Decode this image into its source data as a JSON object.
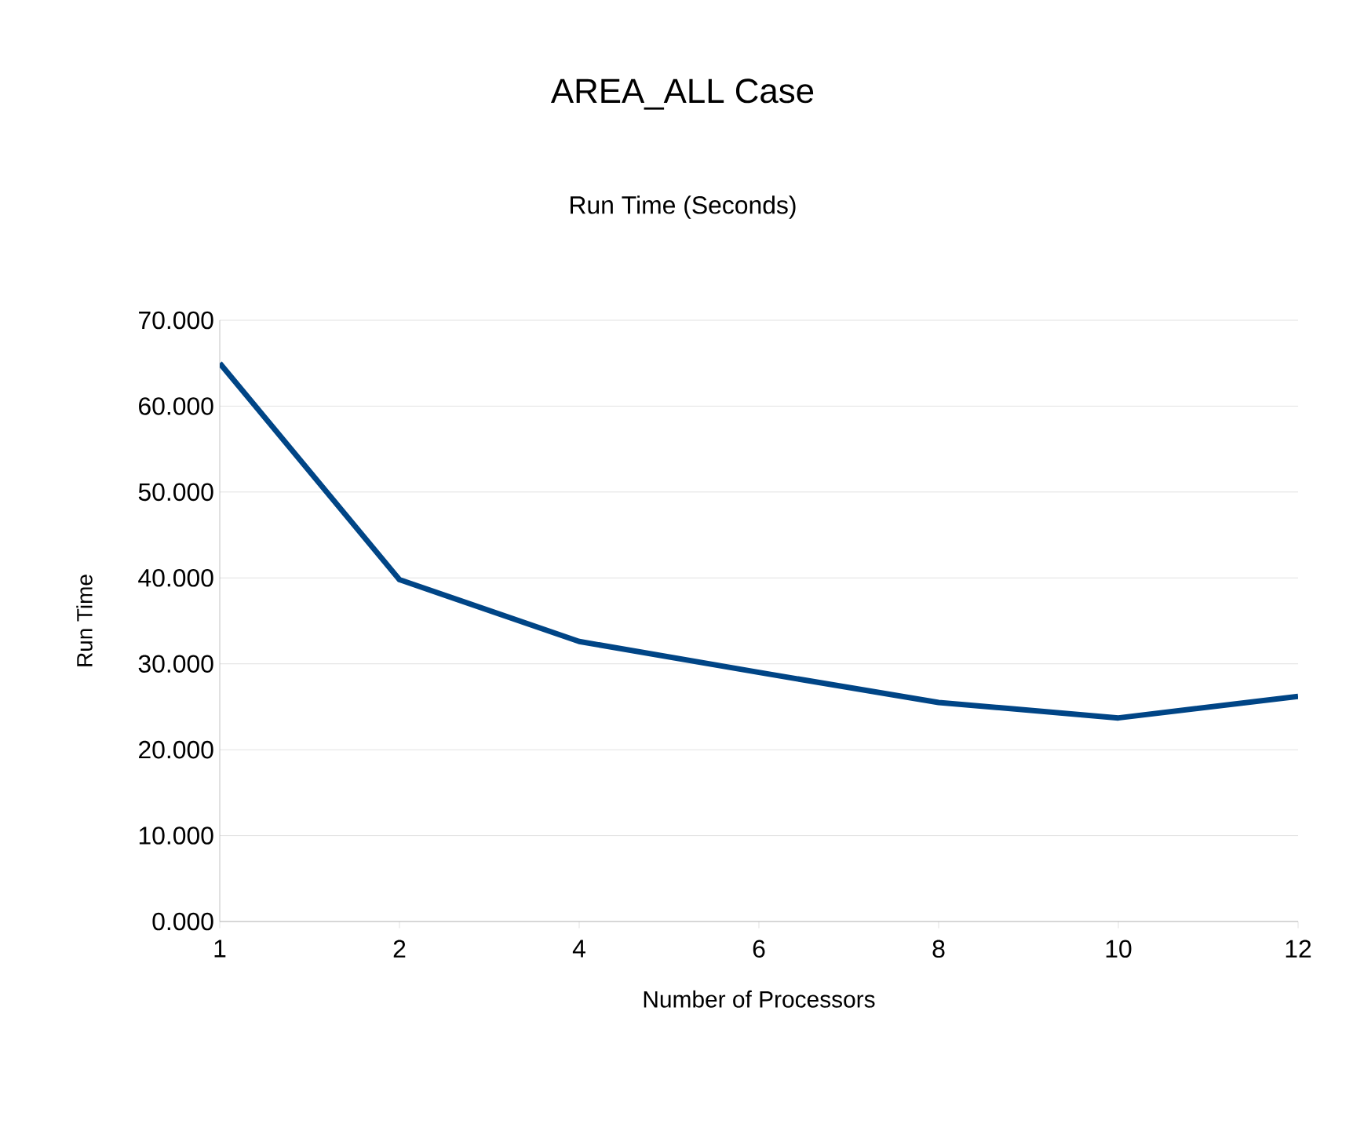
{
  "chart_data": {
    "type": "line",
    "title": "AREA_ALL Case",
    "subtitle": "Run Time (Seconds)",
    "xlabel": "Number of Processors",
    "ylabel": "Run Time",
    "categories": [
      "1",
      "2",
      "4",
      "6",
      "8",
      "10",
      "12"
    ],
    "series": [
      {
        "color": "#004586",
        "values": [
          65.0,
          39.8,
          32.6,
          29.0,
          25.5,
          23.7,
          26.2
        ]
      }
    ],
    "ylim": [
      0,
      70
    ],
    "yticks": [
      {
        "value": 0,
        "label": "0.000"
      },
      {
        "value": 10,
        "label": "10.000"
      },
      {
        "value": 20,
        "label": "20.000"
      },
      {
        "value": 30,
        "label": "30.000"
      },
      {
        "value": 40,
        "label": "40.000"
      },
      {
        "value": 50,
        "label": "50.000"
      },
      {
        "value": 60,
        "label": "60.000"
      },
      {
        "value": 70,
        "label": "70.000"
      }
    ],
    "grid": "y",
    "marker": "none",
    "line_style": "solid"
  }
}
